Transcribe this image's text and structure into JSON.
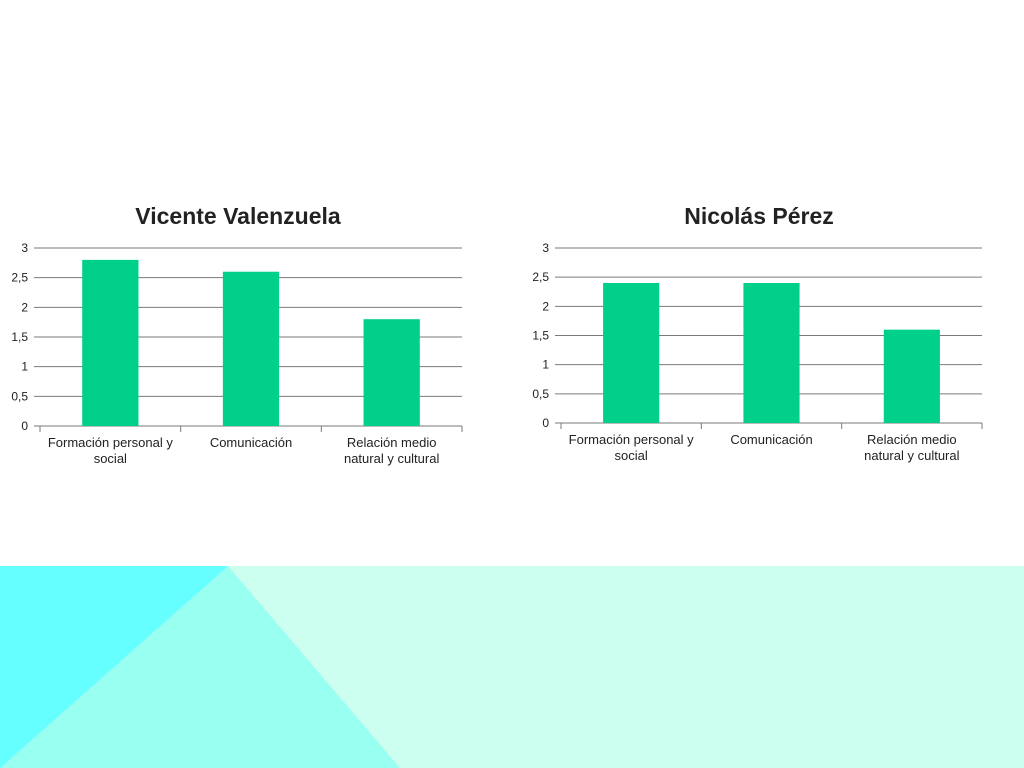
{
  "colors": {
    "bar": "#00d08a",
    "band_main": "#ccfff0",
    "band_left": "#66ffff",
    "band_mid": "#99fff0"
  },
  "chart_data": [
    {
      "type": "bar",
      "title": "Vicente Valenzuela",
      "categories": [
        [
          "Formación personal y",
          "social"
        ],
        [
          "Comunicación"
        ],
        [
          "Relación medio",
          "natural y cultural"
        ]
      ],
      "values": [
        2.8,
        2.6,
        1.8
      ],
      "ylim": [
        0,
        3
      ],
      "yticks": [
        0,
        0.5,
        1,
        1.5,
        2,
        2.5,
        3
      ],
      "ytick_labels": [
        "0",
        "0,5",
        "1",
        "1,5",
        "2",
        "2,5",
        "3"
      ],
      "grid": true,
      "legend": "none"
    },
    {
      "type": "bar",
      "title": "Nicolás Pérez",
      "categories": [
        [
          "Formación personal y",
          "social"
        ],
        [
          "Comunicación"
        ],
        [
          "Relación medio",
          "natural y cultural"
        ]
      ],
      "values": [
        2.4,
        2.4,
        1.6
      ],
      "ylim": [
        0,
        3
      ],
      "yticks": [
        0,
        0.5,
        1,
        1.5,
        2,
        2.5,
        3
      ],
      "ytick_labels": [
        "0",
        "0,5",
        "1",
        "1,5",
        "2",
        "2,5",
        "3"
      ],
      "grid": true,
      "legend": "none"
    }
  ]
}
